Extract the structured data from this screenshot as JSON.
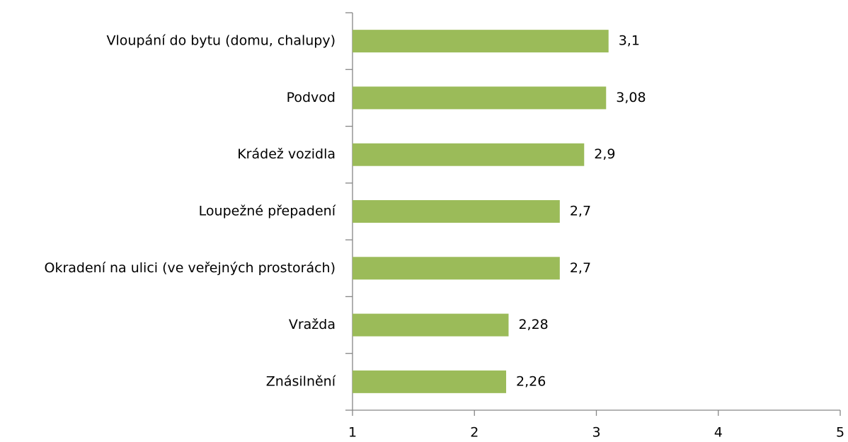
{
  "chart_data": {
    "type": "barh",
    "categories": [
      "Vloupání do bytu (domu, chalupy)",
      "Podvod",
      "Krádež vozidla",
      "Loupežné přepadení",
      "Okradení na ulici (ve veřejných prostorách)",
      "Vražda",
      "Znásilnění"
    ],
    "values": [
      3.1,
      3.08,
      2.9,
      2.7,
      2.7,
      2.28,
      2.26
    ],
    "value_labels": [
      "3,1",
      "3,08",
      "2,9",
      "2,7",
      "2,7",
      "2,28",
      "2,26"
    ],
    "color": "#9bbb59",
    "xlim": [
      1,
      5
    ],
    "xticks": [
      1,
      2,
      3,
      4,
      5
    ],
    "grid": false
  }
}
